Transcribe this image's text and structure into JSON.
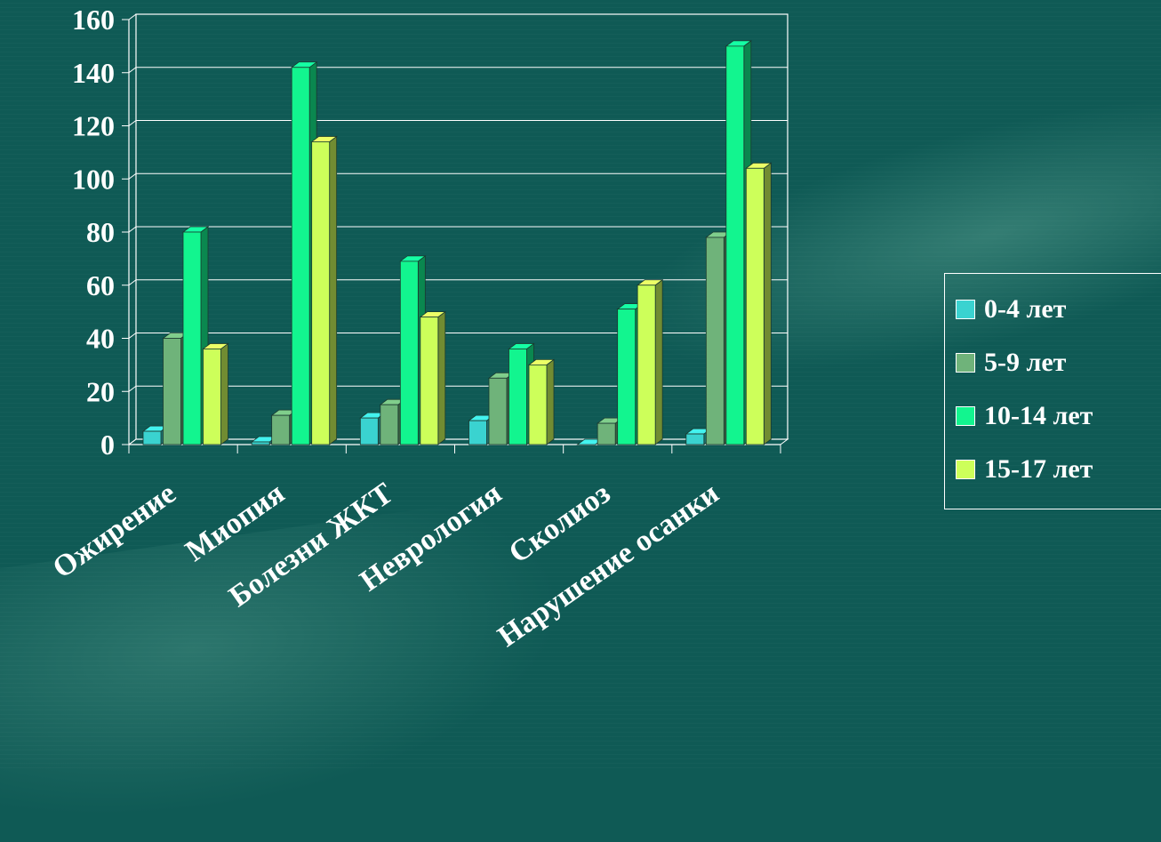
{
  "chart_data": {
    "type": "bar",
    "categories": [
      "Ожирение",
      "Миопия",
      "Болезни ЖКТ",
      "Неврология",
      "Сколиоз",
      "Нарушение осанки"
    ],
    "series": [
      {
        "name": "0-4 лет",
        "values": [
          5,
          1,
          10,
          9,
          0,
          4
        ],
        "color": "#3ad3d0"
      },
      {
        "name": "5-9 лет",
        "values": [
          40,
          11,
          15,
          25,
          8,
          78
        ],
        "color": "#6fb37a"
      },
      {
        "name": "10-14 лет",
        "values": [
          80,
          142,
          69,
          36,
          51,
          150
        ],
        "color": "#12f58f"
      },
      {
        "name": "15-17 лет",
        "values": [
          36,
          114,
          48,
          30,
          60,
          104
        ],
        "color": "#cdff5a"
      }
    ],
    "yticks": [
      0,
      20,
      40,
      60,
      80,
      100,
      120,
      140,
      160
    ],
    "ylim": [
      0,
      160
    ],
    "grid": true,
    "legend_position": "right",
    "title": "",
    "xlabel": "",
    "ylabel": ""
  }
}
